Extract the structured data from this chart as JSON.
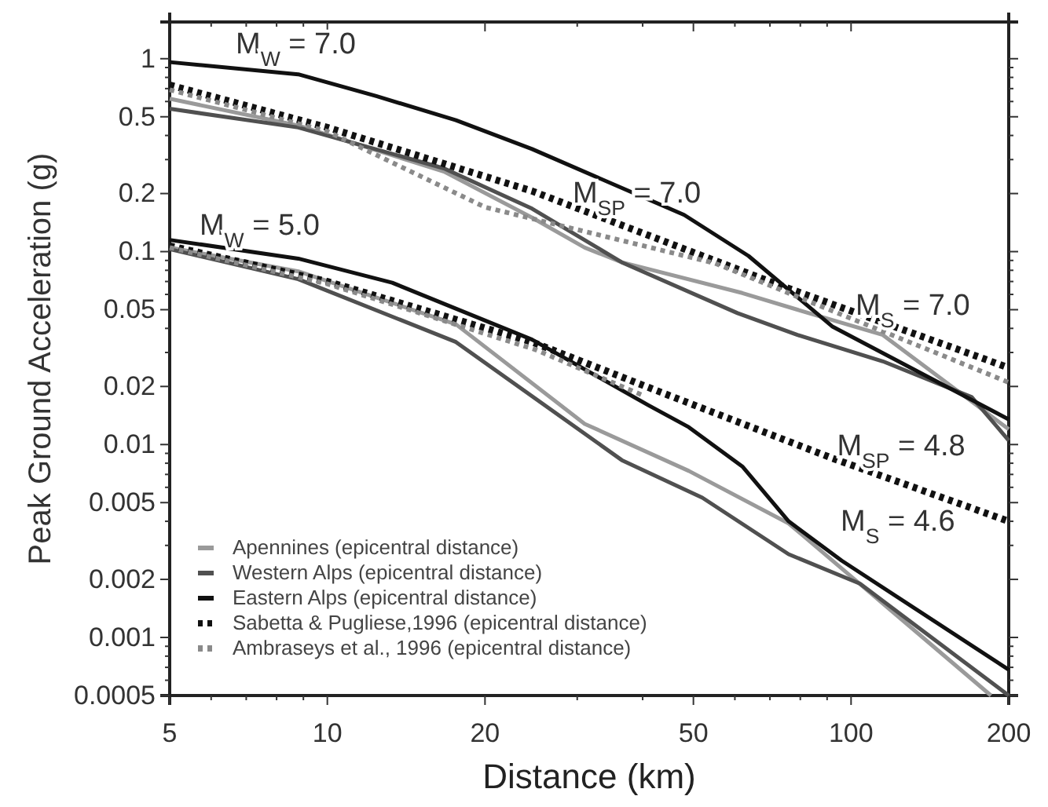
{
  "chart_data": {
    "type": "line",
    "xlabel": "Distance (km)",
    "ylabel": "Peak Ground Acceleration (g)",
    "log": "xy",
    "grid": false,
    "legend": "bottom left",
    "xlim": [
      5,
      200
    ],
    "ylim": [
      0.0005,
      1.55
    ],
    "xticks": [
      5,
      {
        "value": 6,
        "label": null
      },
      {
        "value": 7,
        "label": null
      },
      {
        "value": 8,
        "label": null
      },
      {
        "value": 9,
        "label": null
      },
      10,
      20,
      {
        "value": 30,
        "label": null
      },
      {
        "value": 40,
        "label": null
      },
      50,
      {
        "value": 60,
        "label": null
      },
      {
        "value": 70,
        "label": null
      },
      {
        "value": 80,
        "label": null
      },
      {
        "value": 90,
        "label": null
      },
      100,
      200
    ],
    "yticks": [
      0.0005,
      {
        "value": 0.0006,
        "label": null
      },
      {
        "value": 0.0007,
        "label": null
      },
      {
        "value": 0.0008,
        "label": null
      },
      {
        "value": 0.0009,
        "label": null
      },
      0.001,
      0.002,
      {
        "value": 0.003,
        "label": null
      },
      {
        "value": 0.004,
        "label": null
      },
      0.005,
      {
        "value": 0.006,
        "label": null
      },
      {
        "value": 0.007,
        "label": null
      },
      {
        "value": 0.008,
        "label": null
      },
      {
        "value": 0.009,
        "label": null
      },
      0.01,
      0.02,
      {
        "value": 0.03,
        "label": null
      },
      {
        "value": 0.04,
        "label": null
      },
      0.05,
      {
        "value": 0.06,
        "label": null
      },
      {
        "value": 0.07,
        "label": null
      },
      {
        "value": 0.08,
        "label": null
      },
      {
        "value": 0.09,
        "label": null
      },
      0.1,
      0.2,
      {
        "value": 0.3,
        "label": null
      },
      {
        "value": 0.4,
        "label": null
      },
      0.5,
      {
        "value": 0.6,
        "label": null
      },
      {
        "value": 0.7,
        "label": null
      },
      {
        "value": 0.8,
        "label": null
      },
      {
        "value": 0.9,
        "label": null
      },
      1
    ],
    "series": [
      {
        "name": "Apennines (epicentral distance)",
        "color": "#9a9a9a",
        "line_style": "solid",
        "x": [
          5,
          8.8,
          16.7,
          24.6,
          31,
          36.5,
          62,
          79,
          115,
          200
        ],
        "values": [
          0.62,
          0.45,
          0.26,
          0.15,
          0.105,
          0.088,
          0.061,
          0.05,
          0.037,
          0.012
        ]
      },
      {
        "name": "Western Alps (epicentral distance)",
        "color": "#505050",
        "line_style": "solid",
        "x": [
          5,
          8.8,
          16.7,
          24.6,
          36.5,
          60.7,
          79,
          115,
          170,
          200
        ],
        "values": [
          0.55,
          0.44,
          0.27,
          0.167,
          0.088,
          0.048,
          0.037,
          0.027,
          0.0176,
          0.0105
        ]
      },
      {
        "name": "Eastern Alps (epicentral distance)",
        "color": "#111111",
        "line_style": "solid",
        "x": [
          5,
          8.8,
          12.4,
          17.6,
          24.6,
          48,
          63.7,
          92,
          200
        ],
        "values": [
          0.96,
          0.83,
          0.64,
          0.48,
          0.34,
          0.155,
          0.095,
          0.041,
          0.0135
        ]
      },
      {
        "name": "Sabetta & Pugliese,1996 (epicentral distance)",
        "color": "#111111",
        "line_style": "dotted",
        "x": [
          5,
          10,
          24.6,
          73,
          200
        ],
        "values": [
          0.73,
          0.44,
          0.206,
          0.067,
          0.025
        ]
      },
      {
        "name": "Ambraseys et al., 1996 (epicentral distance)",
        "color": "#8a8a8a",
        "line_style": "dotted",
        "x": [
          5,
          10,
          20,
          55,
          200
        ],
        "values": [
          0.69,
          0.42,
          0.17,
          0.087,
          0.021
        ]
      },
      {
        "color": "#9a9a9a",
        "line_style": "solid",
        "x": [
          5,
          8.8,
          17.6,
          31,
          49,
          76,
          115,
          185
        ],
        "values": [
          0.105,
          0.079,
          0.042,
          0.0128,
          0.0073,
          0.0039,
          0.0015,
          0.0005
        ]
      },
      {
        "color": "#505050",
        "line_style": "solid",
        "x": [
          5,
          8.8,
          17.6,
          36.5,
          52,
          76,
          104,
          200
        ],
        "values": [
          0.103,
          0.072,
          0.034,
          0.0083,
          0.0053,
          0.0027,
          0.0019,
          0.0005
        ]
      },
      {
        "color": "#111111",
        "line_style": "solid",
        "x": [
          5,
          8.8,
          13.3,
          24.6,
          41,
          49,
          62,
          76,
          96,
          200
        ],
        "values": [
          0.115,
          0.092,
          0.069,
          0.035,
          0.016,
          0.0123,
          0.0077,
          0.004,
          0.0025,
          0.00068
        ]
      },
      {
        "color": "#111111",
        "line_style": "dotted",
        "x": [
          5,
          10,
          24.6,
          43.7,
          92,
          200
        ],
        "values": [
          0.107,
          0.07,
          0.034,
          0.0185,
          0.0085,
          0.004
        ]
      },
      {
        "color": "#8a8a8a",
        "line_style": "dotted",
        "x": [
          5,
          10,
          25,
          40
        ],
        "values": [
          0.105,
          0.068,
          0.031,
          0.018
        ]
      }
    ],
    "annotations": [
      "M$_{W}$ = 7.0",
      {
        "text": "M$_{W}$ = 5.0",
        "x": 5.7,
        "y": 0.122
      },
      {
        "text": "M$_{SP}$ = 7.0",
        "x": 29.4,
        "y": 0.18
      },
      {
        "text": "M$_{S}$ = 7.0",
        "x": 102,
        "y": 0.047
      },
      {
        "text": "M$_{SP}$ = 4.8",
        "x": 94,
        "y": 0.0088
      },
      "M$_{S}$ = 4.6"
    ]
  }
}
